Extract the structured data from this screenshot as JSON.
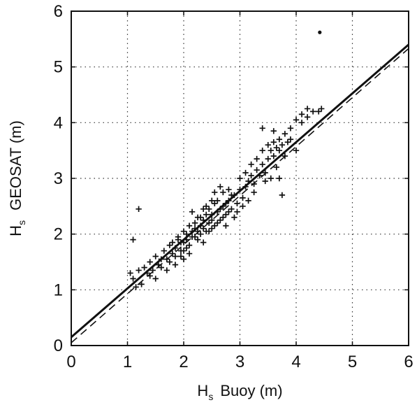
{
  "chart_data": {
    "type": "scatter",
    "title": "",
    "xlabel_main": "H",
    "xlabel_sub": "s",
    "xlabel_rest": "Buoy (m)",
    "ylabel_main": "H",
    "ylabel_sub": "s",
    "ylabel_rest": "GEOSAT (m)",
    "xlim": [
      0,
      6
    ],
    "ylim": [
      0,
      6
    ],
    "xticks": [
      "0",
      "1",
      "2",
      "3",
      "4",
      "5",
      "6"
    ],
    "yticks": [
      "0",
      "1",
      "2",
      "3",
      "4",
      "5",
      "6"
    ],
    "grid": true,
    "grid_style": "dotted",
    "marker": "plus",
    "points": [
      [
        1.05,
        1.3
      ],
      [
        1.1,
        1.2
      ],
      [
        1.15,
        1.05
      ],
      [
        1.2,
        1.35
      ],
      [
        1.25,
        1.1
      ],
      [
        1.3,
        1.4
      ],
      [
        1.35,
        1.3
      ],
      [
        1.4,
        1.5
      ],
      [
        1.45,
        1.35
      ],
      [
        1.5,
        1.6
      ],
      [
        1.55,
        1.45
      ],
      [
        1.6,
        1.55
      ],
      [
        1.65,
        1.7
      ],
      [
        1.7,
        1.55
      ],
      [
        1.75,
        1.8
      ],
      [
        1.8,
        1.65
      ],
      [
        1.85,
        1.75
      ],
      [
        1.9,
        1.9
      ],
      [
        1.95,
        1.7
      ],
      [
        2.0,
        1.85
      ],
      [
        2.05,
        2.0
      ],
      [
        2.1,
        1.8
      ],
      [
        2.15,
        1.95
      ],
      [
        2.2,
        2.1
      ],
      [
        2.25,
        1.9
      ],
      [
        2.3,
        2.15
      ],
      [
        2.35,
        2.25
      ],
      [
        2.4,
        2.05
      ],
      [
        2.45,
        2.2
      ],
      [
        2.5,
        2.35
      ],
      [
        2.55,
        2.15
      ],
      [
        2.6,
        2.4
      ],
      [
        2.65,
        2.25
      ],
      [
        2.7,
        2.5
      ],
      [
        2.75,
        2.35
      ],
      [
        2.8,
        2.6
      ],
      [
        2.85,
        2.45
      ],
      [
        2.9,
        2.7
      ],
      [
        2.95,
        2.55
      ],
      [
        3.0,
        2.8
      ],
      [
        3.05,
        2.65
      ],
      [
        3.1,
        2.85
      ],
      [
        3.15,
        2.95
      ],
      [
        3.2,
        3.05
      ],
      [
        3.25,
        2.9
      ],
      [
        3.3,
        3.15
      ],
      [
        3.35,
        3.05
      ],
      [
        3.4,
        3.25
      ],
      [
        3.45,
        3.1
      ],
      [
        3.5,
        3.35
      ],
      [
        3.55,
        3.5
      ],
      [
        3.6,
        3.4
      ],
      [
        3.65,
        3.55
      ],
      [
        3.7,
        3.7
      ],
      [
        3.75,
        3.6
      ],
      [
        3.8,
        3.8
      ],
      [
        3.85,
        3.65
      ],
      [
        3.9,
        3.9
      ],
      [
        4.0,
        4.05
      ],
      [
        4.1,
        4.15
      ],
      [
        4.2,
        4.25
      ],
      [
        4.3,
        4.2
      ],
      [
        4.4,
        4.2
      ],
      [
        4.45,
        4.25
      ],
      [
        1.8,
        1.85
      ],
      [
        1.9,
        1.95
      ],
      [
        1.95,
        1.85
      ],
      [
        2.0,
        2.05
      ],
      [
        2.05,
        1.9
      ],
      [
        2.1,
        2.15
      ],
      [
        2.15,
        2.05
      ],
      [
        2.2,
        2.2
      ],
      [
        2.25,
        2.3
      ],
      [
        2.3,
        2.0
      ],
      [
        2.35,
        2.1
      ],
      [
        2.4,
        2.35
      ],
      [
        2.45,
        2.45
      ],
      [
        2.5,
        2.25
      ],
      [
        2.55,
        2.55
      ],
      [
        2.6,
        2.2
      ],
      [
        2.65,
        2.45
      ],
      [
        2.7,
        2.3
      ],
      [
        2.75,
        2.55
      ],
      [
        2.8,
        2.4
      ],
      [
        2.85,
        2.7
      ],
      [
        1.85,
        1.6
      ],
      [
        1.95,
        1.6
      ],
      [
        2.0,
        1.7
      ],
      [
        2.05,
        1.75
      ],
      [
        2.1,
        1.65
      ],
      [
        2.2,
        1.95
      ],
      [
        2.25,
        2.05
      ],
      [
        2.3,
        2.3
      ],
      [
        2.4,
        2.5
      ],
      [
        2.45,
        2.05
      ],
      [
        2.6,
        2.6
      ],
      [
        2.7,
        2.75
      ],
      [
        2.8,
        2.8
      ],
      [
        3.0,
        3.0
      ],
      [
        3.1,
        3.1
      ],
      [
        3.2,
        3.25
      ],
      [
        3.3,
        3.35
      ],
      [
        3.4,
        3.5
      ],
      [
        3.5,
        3.6
      ],
      [
        3.6,
        3.65
      ],
      [
        3.7,
        3.5
      ],
      [
        3.8,
        3.4
      ],
      [
        3.9,
        3.7
      ],
      [
        3.65,
        3.2
      ],
      [
        3.55,
        3.0
      ],
      [
        3.45,
        2.95
      ],
      [
        3.25,
        2.75
      ],
      [
        3.15,
        2.6
      ],
      [
        2.95,
        2.4
      ],
      [
        1.1,
        1.9
      ],
      [
        1.2,
        2.45
      ],
      [
        1.4,
        1.25
      ],
      [
        1.5,
        1.2
      ],
      [
        1.6,
        1.4
      ],
      [
        1.7,
        1.35
      ],
      [
        1.75,
        1.5
      ],
      [
        1.85,
        1.45
      ],
      [
        2.0,
        1.55
      ],
      [
        3.4,
        3.9
      ],
      [
        3.6,
        3.85
      ],
      [
        3.7,
        3.0
      ],
      [
        3.75,
        2.7
      ],
      [
        4.0,
        3.5
      ],
      [
        4.1,
        4.0
      ],
      [
        4.2,
        4.1
      ],
      [
        2.15,
        2.4
      ],
      [
        2.35,
        2.45
      ],
      [
        2.5,
        2.6
      ],
      [
        2.55,
        2.75
      ],
      [
        2.65,
        2.85
      ],
      [
        2.35,
        1.85
      ],
      [
        2.5,
        2.1
      ],
      [
        2.75,
        2.15
      ],
      [
        2.9,
        2.3
      ],
      [
        3.05,
        2.5
      ]
    ],
    "outlier_dot": [
      4.42,
      5.62
    ],
    "lines": [
      {
        "style": "solid",
        "x": [
          0,
          6
        ],
        "y": [
          0.15,
          5.4
        ]
      },
      {
        "style": "dashed",
        "x": [
          0,
          6
        ],
        "y": [
          0.05,
          5.33
        ]
      }
    ]
  }
}
